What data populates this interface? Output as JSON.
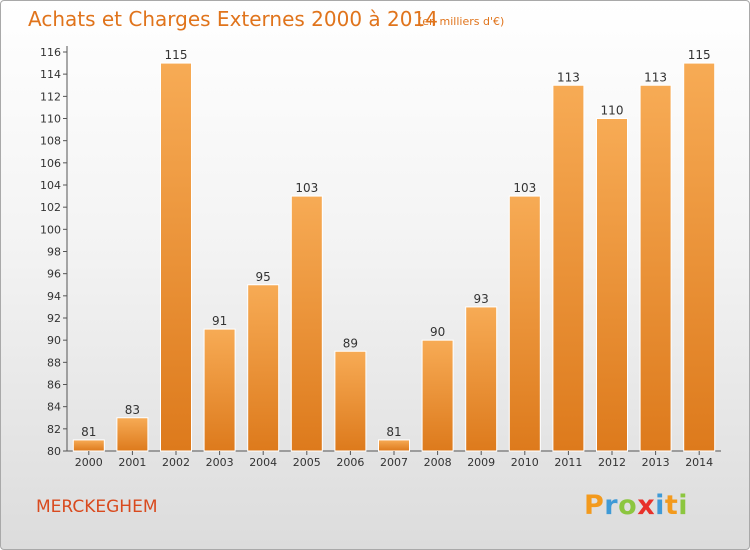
{
  "title": "Achats et Charges Externes 2000 à 2014",
  "subtitle": "(en milliers d'€)",
  "commune": "MERCKEGHEM",
  "logo": {
    "letters": [
      "P",
      "r",
      "o",
      "x",
      "i",
      "t",
      "i"
    ],
    "colors": [
      "#f39a1d",
      "#3f9ad6",
      "#8cc63f",
      "#e8312a",
      "#3f9ad6",
      "#f39a1d",
      "#8cc63f"
    ]
  },
  "colors": {
    "bar_light": "#f7ab55",
    "bar_dark": "#dd7a1c",
    "title": "#e0741c"
  },
  "chart_data": {
    "type": "bar",
    "categories": [
      "2000",
      "2001",
      "2002",
      "2003",
      "2004",
      "2005",
      "2006",
      "2007",
      "2008",
      "2009",
      "2010",
      "2011",
      "2012",
      "2013",
      "2014"
    ],
    "values": [
      81,
      83,
      115,
      91,
      95,
      103,
      89,
      81,
      90,
      93,
      103,
      113,
      110,
      113,
      115
    ],
    "ylim": [
      80,
      116
    ],
    "yticks": [
      80,
      82,
      84,
      86,
      88,
      90,
      92,
      94,
      96,
      98,
      100,
      102,
      104,
      106,
      108,
      110,
      112,
      114,
      116
    ],
    "grid": false,
    "data_labels": true
  }
}
